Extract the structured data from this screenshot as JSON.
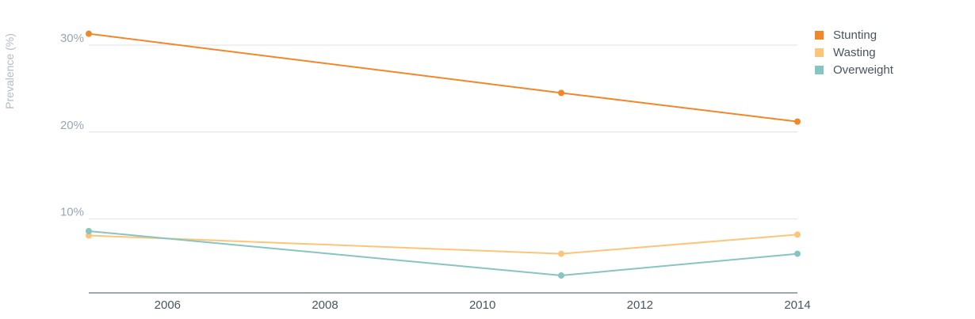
{
  "chart_data": {
    "type": "line",
    "ylabel": "Prevalence (%)",
    "xlim": [
      2005,
      2014
    ],
    "ylim": [
      1.5,
      33
    ],
    "xticks": [
      2006,
      2008,
      2010,
      2012,
      2014
    ],
    "yticks": [
      {
        "value": 10,
        "label": "10%"
      },
      {
        "value": 20,
        "label": "20%"
      },
      {
        "value": 30,
        "label": "30%"
      }
    ],
    "grid": true,
    "legend_position": "top-right",
    "series": [
      {
        "name": "Stunting",
        "color": "#f0882a",
        "x": [
          2005,
          2011,
          2014
        ],
        "y": [
          31.3,
          24.5,
          21.2
        ]
      },
      {
        "name": "Wasting",
        "color": "#fcc579",
        "x": [
          2005,
          2011,
          2014
        ],
        "y": [
          8.1,
          6.0,
          8.2
        ]
      },
      {
        "name": "Overweight",
        "color": "#86c5c1",
        "x": [
          2005,
          2011,
          2014
        ],
        "y": [
          8.6,
          3.5,
          6.0
        ]
      }
    ]
  }
}
